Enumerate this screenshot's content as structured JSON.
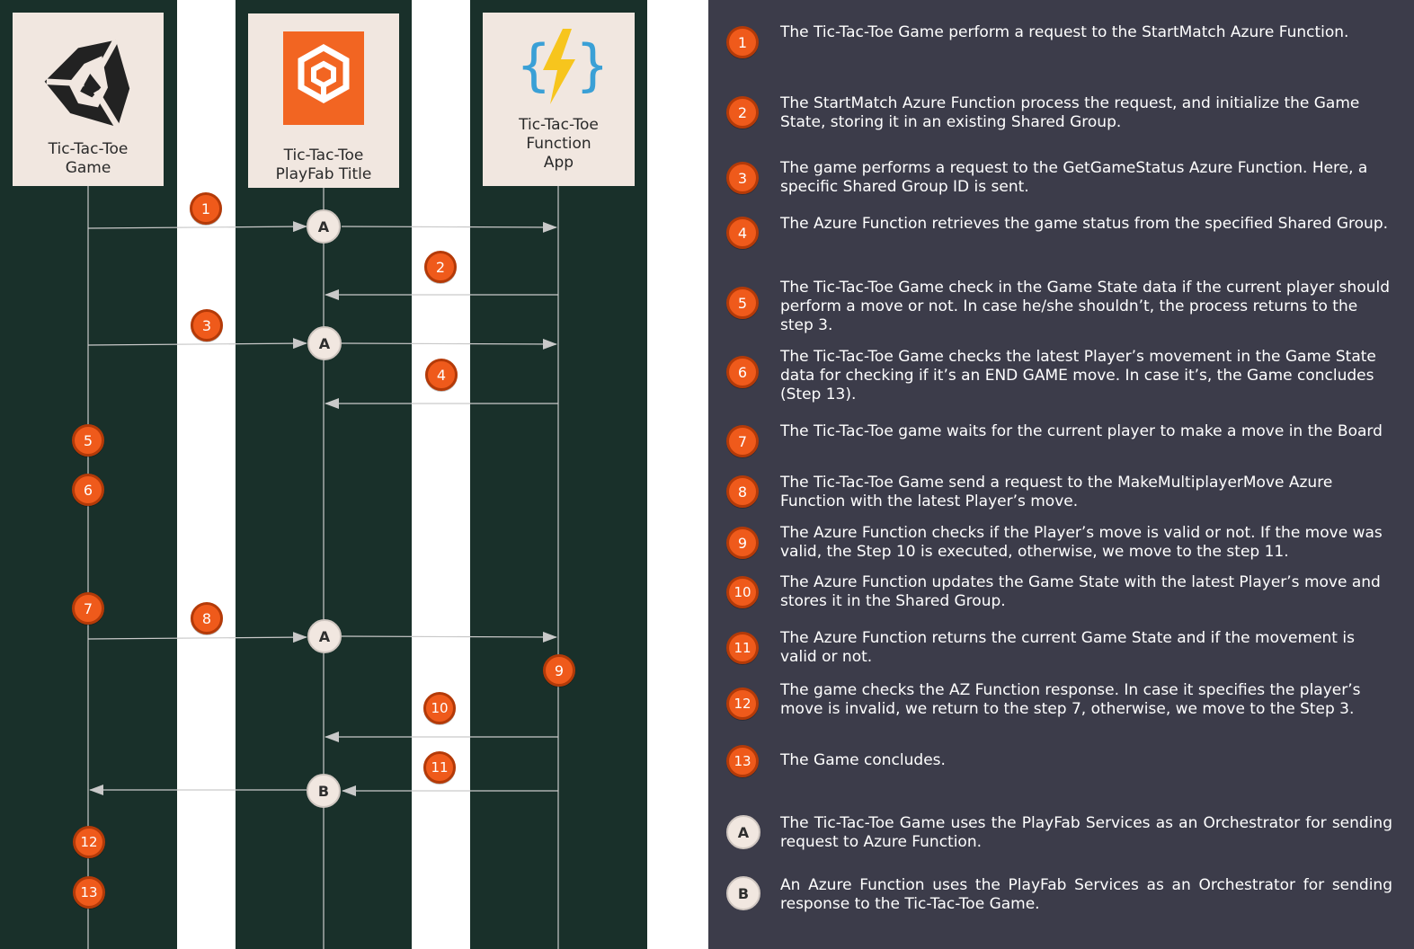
{
  "colors": {
    "lane": "#19302a",
    "panel": "#3c3c4a",
    "actor_box": "#f1e7e0",
    "step_badge": "#ef5a1b",
    "lifeline": "#c9c9c9"
  },
  "actors": [
    {
      "name": "Tic-Tac-Toe\nGame",
      "icon": "unity-logo-icon"
    },
    {
      "name": "Tic-Tac-Toe\nPlayFab Title",
      "icon": "playfab-logo-icon"
    },
    {
      "name": "Tic-Tac-Toe\nFunction\nApp",
      "icon": "azure-functions-icon"
    }
  ],
  "diagram": {
    "steps": [
      "1",
      "2",
      "3",
      "4",
      "5",
      "6",
      "7",
      "8",
      "9",
      "10",
      "11",
      "12",
      "13"
    ],
    "orchestrators": [
      "A",
      "A",
      "A",
      "B"
    ]
  },
  "legend": {
    "steps": [
      {
        "num": "1",
        "text": "The Tic-Tac-Toe Game perform a request to the StartMatch Azure Function."
      },
      {
        "num": "2",
        "text": "The StartMatch Azure Function process the request, and initialize the Game State, storing it in an existing Shared Group."
      },
      {
        "num": "3",
        "text": "The game performs a request to the GetGameStatus Azure Function. Here, a specific Shared Group ID is sent."
      },
      {
        "num": "4",
        "text": "The Azure Function retrieves the game status from the specified Shared Group."
      },
      {
        "num": "5",
        "text": "The Tic-Tac-Toe Game check in the Game State data if the current player should perform a move or not. In case he/she shouldn’t, the process returns to the step 3."
      },
      {
        "num": "6",
        "text": "The Tic-Tac-Toe Game checks the latest Player’s movement in the Game State data for checking if it’s an END GAME move. In case it’s, the Game concludes (Step 13)."
      },
      {
        "num": "7",
        "text": "The Tic-Tac-Toe game waits for the current player to make a move in the Board"
      },
      {
        "num": "8",
        "text": "The Tic-Tac-Toe Game send a request to the MakeMultiplayerMove Azure Function with the latest Player’s move."
      },
      {
        "num": "9",
        "text": "The Azure Function checks if the Player’s move is valid or not. If the move was valid, the Step 10 is executed, otherwise, we move to the step 11."
      },
      {
        "num": "10",
        "text": "The Azure Function updates the Game State with the latest Player’s move and stores it in the Shared Group."
      },
      {
        "num": "11",
        "text": "The Azure Function returns the current Game State and if the movement is valid or not."
      },
      {
        "num": "12",
        "text": "The game checks the AZ Function response. In case it specifies the player’s move is invalid, we return to the step 7, otherwise, we move to the Step 3."
      },
      {
        "num": "13",
        "text": "The Game concludes."
      }
    ],
    "orchestrators": [
      {
        "letter": "A",
        "text": "The Tic-Tac-Toe Game uses the PlayFab Services as an Orchestrator for sending request to Azure Function."
      },
      {
        "letter": "B",
        "text": "An Azure Function uses the PlayFab Services as an Orchestrator for sending response to the Tic-Tac-Toe Game."
      }
    ]
  }
}
